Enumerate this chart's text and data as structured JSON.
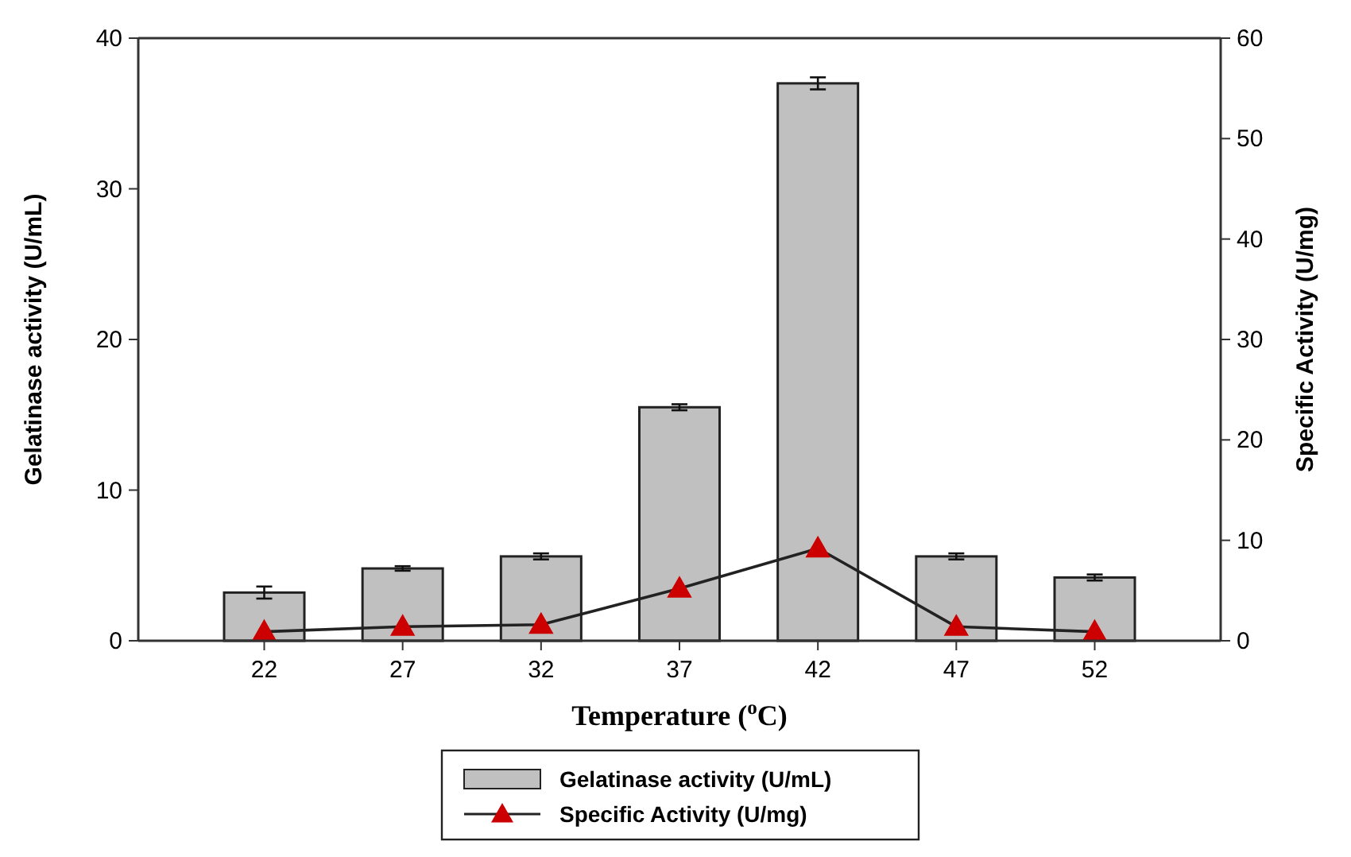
{
  "chart_data": {
    "type": "bar",
    "xlabel": "Temperature ($^{o}$C)",
    "ylabel": "Gelatinase activity (U/mL)",
    "y2label": "Specific Activity (U/mg)",
    "categories": [
      "22",
      "27",
      "32",
      "37",
      "42",
      "47",
      "52"
    ],
    "series": [
      {
        "name": "Gelatinase activity (U/mL)",
        "color": "#c0c0c0",
        "values": [
          3.2,
          4.8,
          5.6,
          15.5,
          37.0,
          5.6,
          4.2
        ],
        "errors": [
          0.4,
          0.15,
          0.2,
          0.2,
          0.4,
          0.2,
          0.2
        ]
      },
      {
        "name": "Specific Activity (U/mg)",
        "type": "line",
        "axis": "y2",
        "color": "#cc0000",
        "marker": "triangle",
        "values": [
          0.9,
          1.4,
          1.6,
          5.2,
          9.2,
          1.4,
          0.9
        ]
      }
    ],
    "ylim": [
      0,
      40
    ],
    "yticks": [
      0,
      10,
      20,
      30,
      40
    ],
    "y2lim": [
      0,
      60
    ],
    "y2ticks": [
      0,
      10,
      20,
      30,
      40,
      50,
      60
    ],
    "legend": "bottom",
    "grid": false
  }
}
